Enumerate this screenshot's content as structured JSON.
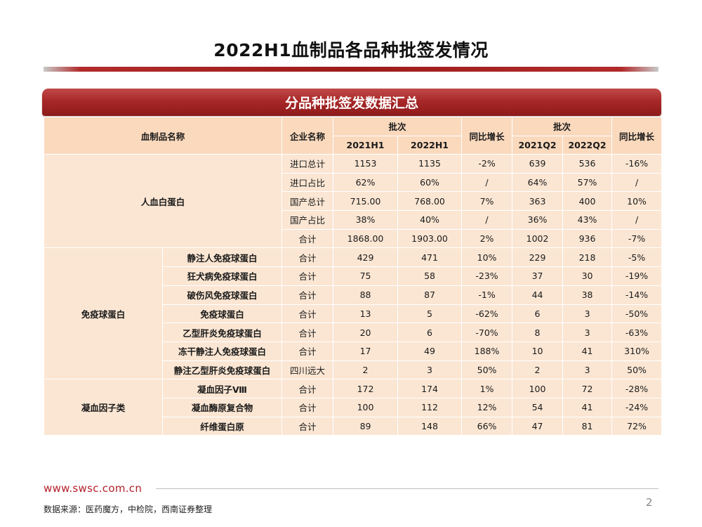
{
  "title": "2022H1血制品各品种批签发情况",
  "panel_title": "分品种批签发数据汇总",
  "header": {
    "product_name": "血制品名称",
    "company": "企业名称",
    "batches_a": "批次",
    "h1_2021": "2021H1",
    "h1_2022": "2022H1",
    "yoy_a": "同比增长",
    "batches_b": "批次",
    "q2_2021": "2021Q2",
    "q2_2022": "2022Q2",
    "yoy_b": "同比增长"
  },
  "albumin": {
    "category": "人血白蛋白",
    "rows": [
      {
        "company": "进口总计",
        "h1_2021": "1153",
        "h1_2022": "1135",
        "yoy_h1": "-2%",
        "q2_2021": "639",
        "q2_2022": "536",
        "yoy_q2": "-16%"
      },
      {
        "company": "进口占比",
        "h1_2021": "62%",
        "h1_2022": "60%",
        "yoy_h1": "/",
        "q2_2021": "64%",
        "q2_2022": "57%",
        "yoy_q2": "/"
      },
      {
        "company": "国产总计",
        "h1_2021": "715.00",
        "h1_2022": "768.00",
        "yoy_h1": "7%",
        "q2_2021": "363",
        "q2_2022": "400",
        "yoy_q2": "10%"
      },
      {
        "company": "国产占比",
        "h1_2021": "38%",
        "h1_2022": "40%",
        "yoy_h1": "/",
        "q2_2021": "36%",
        "q2_2022": "43%",
        "yoy_q2": "/"
      },
      {
        "company": "合计",
        "h1_2021": "1868.00",
        "h1_2022": "1903.00",
        "yoy_h1": "2%",
        "q2_2021": "1002",
        "q2_2022": "936",
        "yoy_q2": "-7%"
      }
    ]
  },
  "immunoglobulin": {
    "category": "免疫球蛋白",
    "rows": [
      {
        "product": "静注人免疫球蛋白",
        "company": "合计",
        "h1_2021": "429",
        "h1_2022": "471",
        "yoy_h1": "10%",
        "q2_2021": "229",
        "q2_2022": "218",
        "yoy_q2": "-5%"
      },
      {
        "product": "狂犬病免疫球蛋白",
        "company": "合计",
        "h1_2021": "75",
        "h1_2022": "58",
        "yoy_h1": "-23%",
        "q2_2021": "37",
        "q2_2022": "30",
        "yoy_q2": "-19%"
      },
      {
        "product": "破伤风免疫球蛋白",
        "company": "合计",
        "h1_2021": "88",
        "h1_2022": "87",
        "yoy_h1": "-1%",
        "q2_2021": "44",
        "q2_2022": "38",
        "yoy_q2": "-14%"
      },
      {
        "product": "免疫球蛋白",
        "company": "合计",
        "h1_2021": "13",
        "h1_2022": "5",
        "yoy_h1": "-62%",
        "q2_2021": "6",
        "q2_2022": "3",
        "yoy_q2": "-50%"
      },
      {
        "product": "乙型肝炎免疫球蛋白",
        "company": "合计",
        "h1_2021": "20",
        "h1_2022": "6",
        "yoy_h1": "-70%",
        "q2_2021": "8",
        "q2_2022": "3",
        "yoy_q2": "-63%"
      },
      {
        "product": "冻干静注人免疫球蛋白",
        "company": "合计",
        "h1_2021": "17",
        "h1_2022": "49",
        "yoy_h1": "188%",
        "q2_2021": "10",
        "q2_2022": "41",
        "yoy_q2": "310%"
      },
      {
        "product": "静注乙型肝炎免疫球蛋白",
        "company": "四川远大",
        "h1_2021": "2",
        "h1_2022": "3",
        "yoy_h1": "50%",
        "q2_2021": "2",
        "q2_2022": "3",
        "yoy_q2": "50%"
      }
    ]
  },
  "coagulation": {
    "category": "凝血因子类",
    "rows": [
      {
        "product": "凝血因子Ⅷ",
        "company": "合计",
        "h1_2021": "172",
        "h1_2022": "174",
        "yoy_h1": "1%",
        "q2_2021": "100",
        "q2_2022": "72",
        "yoy_q2": "-28%"
      },
      {
        "product": "凝血酶原复合物",
        "company": "合计",
        "h1_2021": "100",
        "h1_2022": "112",
        "yoy_h1": "12%",
        "q2_2021": "54",
        "q2_2022": "41",
        "yoy_q2": "-24%"
      },
      {
        "product": "纤维蛋白原",
        "company": "合计",
        "h1_2021": "89",
        "h1_2022": "148",
        "yoy_h1": "66%",
        "q2_2021": "47",
        "q2_2022": "81",
        "yoy_q2": "72%"
      }
    ]
  },
  "footer": {
    "url": "www.swsc.com.cn",
    "source": "数据来源：医药魔方，中检院，西南证券整理",
    "page_number": "2"
  },
  "colors": {
    "accent_red": "#a82828",
    "cell_bg": "#fbe6d3",
    "url_red": "#b3202a"
  }
}
